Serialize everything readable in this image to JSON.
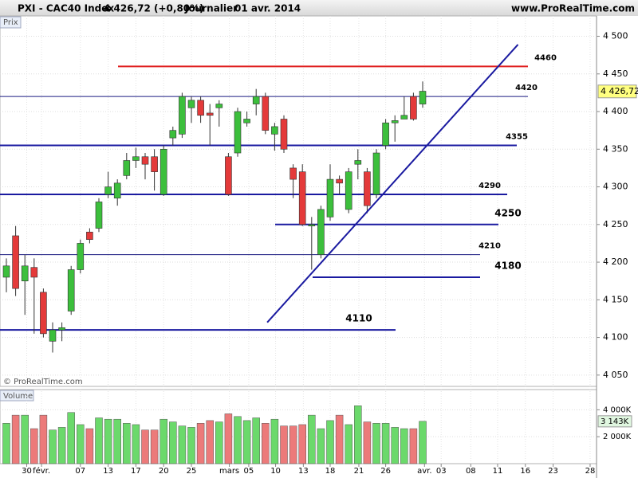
{
  "chart_data": {
    "type": "candlestick",
    "symbol": "PXI - CAC40 Index",
    "price_change": "4 426,72 (+0,80%)",
    "period": "Journalier",
    "date": "01 avr. 2014",
    "site": "www.ProRealTime.com",
    "panel_label": "Prix",
    "copyright": "© ProRealTime.com",
    "volume_label": "Volume",
    "last_price": {
      "value": 4426.72,
      "label": "4 426,72"
    },
    "last_volume": {
      "value": 3143,
      "label": "3 143K"
    },
    "up_color": "#3cbf3c",
    "down_color": "#e43a3a",
    "open": [
      4180,
      4235,
      4175,
      4193,
      4160,
      4095,
      4110,
      4135,
      4190,
      4240,
      4245,
      4290,
      4285,
      4315,
      4335,
      4340,
      4340,
      4290,
      4365,
      4370,
      4405,
      4415,
      4398,
      4405,
      4340,
      4345,
      4385,
      4410,
      4420,
      4370,
      4390,
      4325,
      4320,
      4248,
      4210,
      4260,
      4310,
      4270,
      4330,
      4320,
      4290,
      4355,
      4385,
      4390,
      4420,
      4410
    ],
    "high": [
      4205,
      4248,
      4210,
      4205,
      4165,
      4120,
      4120,
      4195,
      4230,
      4245,
      4285,
      4320,
      4310,
      4345,
      4352,
      4345,
      4350,
      4355,
      4380,
      4425,
      4420,
      4420,
      4410,
      4415,
      4345,
      4405,
      4400,
      4430,
      4425,
      4385,
      4395,
      4330,
      4330,
      4260,
      4275,
      4330,
      4315,
      4325,
      4350,
      4325,
      4350,
      4390,
      4395,
      4420,
      4425,
      4440
    ],
    "low": [
      4160,
      4155,
      4130,
      4105,
      4100,
      4080,
      4095,
      4130,
      4185,
      4225,
      4240,
      4285,
      4275,
      4310,
      4325,
      4310,
      4295,
      4288,
      4355,
      4365,
      4385,
      4385,
      4355,
      4380,
      4288,
      4340,
      4380,
      4395,
      4370,
      4348,
      4345,
      4285,
      4248,
      4190,
      4205,
      4255,
      4290,
      4265,
      4310,
      4265,
      4285,
      4350,
      4360,
      4390,
      4388,
      4405
    ],
    "close": [
      4195,
      4165,
      4195,
      4180,
      4105,
      4110,
      4113,
      4190,
      4225,
      4230,
      4280,
      4300,
      4305,
      4335,
      4340,
      4330,
      4320,
      4350,
      4375,
      4420,
      4415,
      4395,
      4395,
      4410,
      4290,
      4400,
      4390,
      4420,
      4375,
      4380,
      4350,
      4310,
      4250,
      4250,
      4270,
      4310,
      4305,
      4320,
      4335,
      4275,
      4345,
      4385,
      4388,
      4395,
      4390,
      4427
    ],
    "volume": [
      3000,
      3600,
      3600,
      2600,
      3600,
      2500,
      2700,
      3800,
      2900,
      2600,
      3400,
      3300,
      3300,
      3000,
      2900,
      2500,
      2500,
      3300,
      3100,
      2800,
      2700,
      3000,
      3200,
      3100,
      3700,
      3500,
      3200,
      3400,
      3000,
      3300,
      2800,
      2800,
      2900,
      3600,
      2600,
      3200,
      3600,
      2900,
      4300,
      3100,
      3000,
      3000,
      2700,
      2600,
      2600,
      3143
    ],
    "ylim": [
      4035,
      4527
    ],
    "yticks": [
      {
        "value": 4050,
        "label": "4 050"
      },
      {
        "value": 4100,
        "label": "4 100"
      },
      {
        "value": 4150,
        "label": "4 150"
      },
      {
        "value": 4200,
        "label": "4 200"
      },
      {
        "value": 4250,
        "label": "4 250"
      },
      {
        "value": 4300,
        "label": "4 300"
      },
      {
        "value": 4350,
        "label": "4 350"
      },
      {
        "value": 4400,
        "label": "4 400"
      },
      {
        "value": 4450,
        "label": "4 450"
      },
      {
        "value": 4500,
        "label": "4 500"
      }
    ],
    "volume_ylim": [
      0,
      5500
    ],
    "volume_yticks": [
      {
        "value": 2000,
        "label": "2 000K"
      },
      {
        "value": 4000,
        "label": "4 000K"
      }
    ],
    "x_labels": [
      {
        "index": 2.2,
        "label": "30"
      },
      {
        "index": 3.8,
        "label": "févr."
      },
      {
        "index": 8.0,
        "label": "07"
      },
      {
        "index": 11.0,
        "label": "13"
      },
      {
        "index": 14.0,
        "label": "17"
      },
      {
        "index": 17.0,
        "label": "20"
      },
      {
        "index": 20.0,
        "label": "25"
      },
      {
        "index": 24.1,
        "label": "mars"
      },
      {
        "index": 26.2,
        "label": "05"
      },
      {
        "index": 29.1,
        "label": "10"
      },
      {
        "index": 32.1,
        "label": "13"
      },
      {
        "index": 35.0,
        "label": "18"
      },
      {
        "index": 38.1,
        "label": "21"
      },
      {
        "index": 41.0,
        "label": "26"
      },
      {
        "index": 45.2,
        "label": "avr."
      },
      {
        "index": 47.0,
        "label": "03"
      },
      {
        "index": 50.2,
        "label": "08"
      },
      {
        "index": 53.1,
        "label": "11"
      },
      {
        "index": 56.1,
        "label": "16"
      },
      {
        "index": 59.1,
        "label": "23"
      },
      {
        "index": 63.1,
        "label": "28"
      }
    ],
    "levels": [
      4460,
      4420,
      4355,
      4290,
      4250,
      4210,
      4180,
      4110
    ],
    "level_colors": [
      "#e02020",
      "#1a1a80",
      "#1a1aa0",
      "#1a1aa0",
      "#1a1aa0",
      "#1a1a80",
      "#1a1aa0",
      "#1a1aa0"
    ],
    "trendline": {
      "x": [
        28.2,
        55.3
      ],
      "y": [
        4120,
        4489
      ],
      "color": "#1a1aa0"
    }
  }
}
